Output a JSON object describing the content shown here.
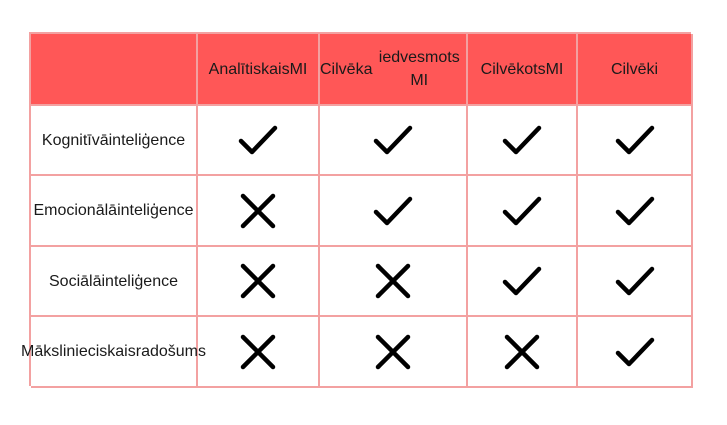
{
  "table": {
    "columns": [
      [
        "Analītiskais",
        "MI"
      ],
      [
        "Cilvēka",
        "iedvesmots MI"
      ],
      [
        "Cilvēkots",
        "MI"
      ],
      [
        "Cilvēki"
      ]
    ],
    "rows": [
      {
        "label": [
          "Kognitīvā",
          "inteliģence"
        ],
        "marks": [
          "check",
          "check",
          "check",
          "check"
        ]
      },
      {
        "label": [
          "Emocionālā",
          "inteliģence"
        ],
        "marks": [
          "cross",
          "check",
          "check",
          "check"
        ]
      },
      {
        "label": [
          "Sociālā",
          "inteliģence"
        ],
        "marks": [
          "cross",
          "cross",
          "check",
          "check"
        ]
      },
      {
        "label": [
          "Mākslinieciskais",
          "radošums"
        ],
        "marks": [
          "cross",
          "cross",
          "cross",
          "check"
        ]
      }
    ]
  },
  "colors": {
    "header_bg": "#ff5757",
    "border": "#f3a1a1",
    "mark": "#000000"
  }
}
